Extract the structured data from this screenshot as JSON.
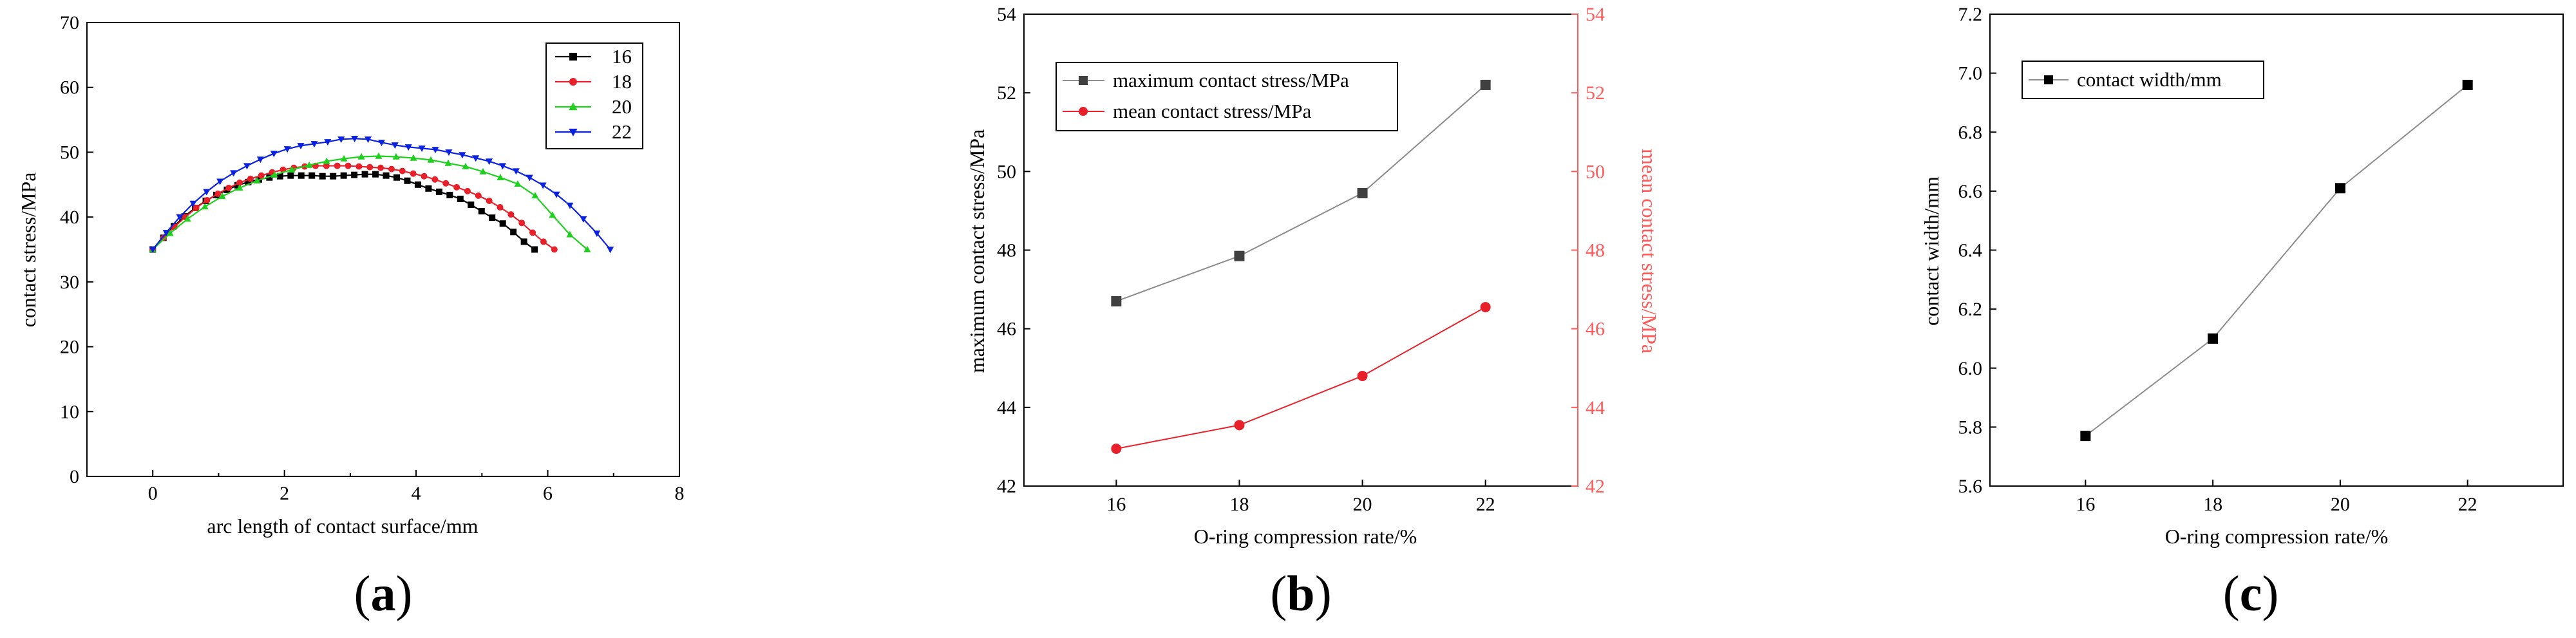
{
  "colors": {
    "black": "#000000",
    "red": "#e8202a",
    "green": "#1fd01f",
    "blue": "#0a22e0",
    "grey": "#404040",
    "red_axis": "#ff5a5a",
    "line_grey": "#8c8c8c"
  },
  "chart_data": [
    {
      "id": "a",
      "caption_letter": "a",
      "type": "line",
      "xlabel": "arc length of contact surface/mm",
      "ylabel": "contact stress/MPa",
      "xlim": [
        -1,
        8
      ],
      "ylim": [
        0,
        70
      ],
      "xticks": [
        0,
        2,
        4,
        6,
        8
      ],
      "yticks": [
        0,
        10,
        20,
        30,
        40,
        50,
        60,
        70
      ],
      "legend": [
        "16",
        "18",
        "20",
        "22"
      ],
      "series": [
        {
          "name": "16",
          "color": "black",
          "marker": "square",
          "arc_end": 5.8,
          "values": [
            35,
            36.8,
            38.6,
            40.1,
            41.4,
            42.5,
            43.4,
            44.2,
            44.9,
            45.4,
            45.8,
            46.1,
            46.3,
            46.4,
            46.4,
            46.4,
            46.3,
            46.3,
            46.4,
            46.5,
            46.6,
            46.6,
            46.4,
            46.1,
            45.6,
            45.0,
            44.4,
            43.9,
            43.4,
            42.8,
            41.9,
            40.9,
            39.9,
            39.0,
            37.7,
            36.2,
            35
          ]
        },
        {
          "name": "18",
          "color": "red",
          "marker": "circle",
          "arc_end": 6.1,
          "values": [
            35,
            36.8,
            38.5,
            40.0,
            41.4,
            42.6,
            43.6,
            44.5,
            45.3,
            45.9,
            46.4,
            46.9,
            47.3,
            47.6,
            47.8,
            47.9,
            47.9,
            47.9,
            47.9,
            47.8,
            47.7,
            47.6,
            47.4,
            47.1,
            46.7,
            46.3,
            45.8,
            45.2,
            44.6,
            44.0,
            43.3,
            42.5,
            41.5,
            40.4,
            39.1,
            37.6,
            36.2,
            35
          ]
        },
        {
          "name": "20",
          "color": "green",
          "marker": "triangle-up",
          "arc_end": 6.6,
          "values": [
            35,
            37.5,
            39.7,
            41.6,
            43.2,
            44.5,
            45.6,
            46.5,
            47.3,
            48.0,
            48.6,
            49.0,
            49.3,
            49.4,
            49.3,
            49.1,
            48.8,
            48.3,
            47.8,
            47.0,
            46.1,
            45.1,
            43.3,
            40.3,
            37.3,
            35
          ]
        },
        {
          "name": "22",
          "color": "blue",
          "marker": "triangle-down",
          "arc_end": 6.95,
          "values": [
            35,
            37.6,
            40.0,
            42.1,
            43.9,
            45.5,
            46.8,
            47.9,
            48.9,
            49.8,
            50.5,
            51.0,
            51.3,
            51.6,
            52.0,
            52.1,
            52.0,
            51.5,
            51.1,
            50.8,
            50.6,
            50.4,
            50.0,
            49.6,
            49.1,
            48.6,
            47.9,
            47.1,
            46.1,
            44.9,
            43.5,
            41.8,
            39.7,
            37.5,
            35
          ]
        }
      ]
    },
    {
      "id": "b",
      "caption_letter": "b",
      "type": "line",
      "xlabel": "O-ring compression rate/%",
      "ylabel": "maximum contact stress/MPa",
      "ylabel_right": "mean contact stress/MPa",
      "categories": [
        "16",
        "18",
        "20",
        "22"
      ],
      "x": [
        16,
        18,
        20,
        22
      ],
      "xlim": [
        14.5,
        23.5
      ],
      "ylim": [
        42,
        54
      ],
      "ylim_right": [
        42,
        54
      ],
      "yticks": [
        42,
        44,
        46,
        48,
        50,
        52,
        54
      ],
      "yticks_right": [
        42,
        44,
        46,
        48,
        50,
        52,
        54
      ],
      "series": [
        {
          "name": "maximum contact stress/MPa",
          "color": "grey",
          "marker": "square",
          "axis": "left",
          "values": [
            46.7,
            47.85,
            49.45,
            52.2
          ]
        },
        {
          "name": "mean contact stress/MPa",
          "color": "red",
          "marker": "circle",
          "axis": "right",
          "values": [
            42.95,
            43.55,
            44.8,
            46.55
          ]
        }
      ]
    },
    {
      "id": "c",
      "caption_letter": "c",
      "type": "line",
      "xlabel": "O-ring compression rate/%",
      "ylabel": "contact width/mm",
      "categories": [
        "16",
        "18",
        "20",
        "22"
      ],
      "x": [
        16,
        18,
        20,
        22
      ],
      "xlim": [
        14.5,
        23.5
      ],
      "ylim": [
        5.6,
        7.2
      ],
      "yticks": [
        "5.6",
        "5.8",
        "6.0",
        "6.2",
        "6.4",
        "6.6",
        "6.8",
        "7.0",
        "7.2"
      ],
      "series": [
        {
          "name": "contact width/mm",
          "color": "black",
          "marker": "square",
          "values": [
            5.77,
            6.1,
            6.61,
            6.96
          ]
        }
      ]
    }
  ]
}
